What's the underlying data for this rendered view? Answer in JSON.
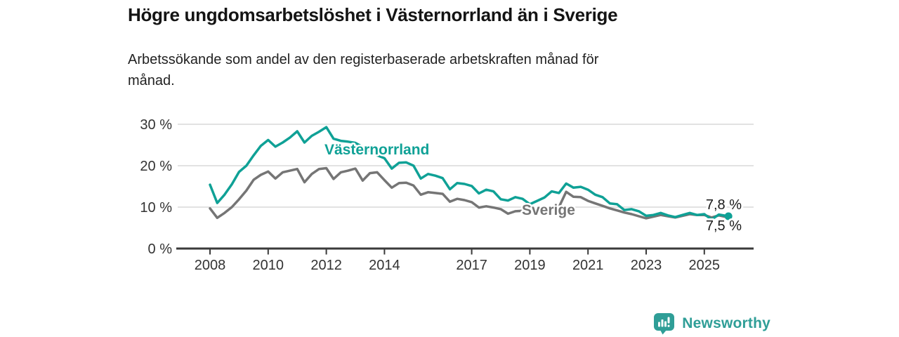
{
  "header": {
    "title": "Högre ungdomsarbetslöshet i Västernorrland än i Sverige",
    "subtitle_line1": "Arbetssökande som andel av den registerbaserade arbetskraften månad för",
    "subtitle_line2": "månad."
  },
  "footer": {
    "brand": "Newsworthy"
  },
  "colors": {
    "accent_teal": "#0fa196",
    "line_gray": "#757575",
    "grid": "#d9d9d9",
    "axis": "#3a3a3a",
    "tick_label": "#333333",
    "end_label": "#1a1a1a",
    "logo_teal": "#2f9e97",
    "background": "#ffffff"
  },
  "chart_data": {
    "type": "line",
    "title": "Högre ungdomsarbetslöshet i Västernorrland än i Sverige",
    "xlabel": "",
    "ylabel": "",
    "y_unit": "%",
    "ylim": [
      0,
      32
    ],
    "xlim": [
      2007.85,
      2026.3
    ],
    "grid": true,
    "legend_position": "inline-labels",
    "x_ticks": [
      {
        "value": 2008,
        "label": "2008"
      },
      {
        "value": 2010,
        "label": "2010"
      },
      {
        "value": 2012,
        "label": "2012"
      },
      {
        "value": 2014,
        "label": "2014"
      },
      {
        "value": 2017,
        "label": "2017"
      },
      {
        "value": 2019,
        "label": "2019"
      },
      {
        "value": 2021,
        "label": "2021"
      },
      {
        "value": 2023,
        "label": "2023"
      },
      {
        "value": 2025,
        "label": "2025"
      }
    ],
    "y_ticks": [
      {
        "value": 0,
        "label": "0 %"
      },
      {
        "value": 10,
        "label": "10 %"
      },
      {
        "value": 20,
        "label": "20 %"
      },
      {
        "value": 30,
        "label": "30 %"
      }
    ],
    "x": [
      2008.0,
      2008.25,
      2008.5,
      2008.75,
      2009.0,
      2009.25,
      2009.5,
      2009.75,
      2010.0,
      2010.25,
      2010.5,
      2010.75,
      2011.0,
      2011.25,
      2011.5,
      2011.75,
      2012.0,
      2012.25,
      2012.5,
      2012.75,
      2013.0,
      2013.25,
      2013.5,
      2013.75,
      2014.0,
      2014.25,
      2014.5,
      2014.75,
      2015.0,
      2015.25,
      2015.5,
      2015.75,
      2016.0,
      2016.25,
      2016.5,
      2016.75,
      2017.0,
      2017.25,
      2017.5,
      2017.75,
      2018.0,
      2018.25,
      2018.5,
      2018.75,
      2019.0,
      2019.25,
      2019.5,
      2019.75,
      2020.0,
      2020.25,
      2020.5,
      2020.75,
      2021.0,
      2021.25,
      2021.5,
      2021.75,
      2022.0,
      2022.25,
      2022.5,
      2022.75,
      2023.0,
      2023.25,
      2023.5,
      2023.75,
      2024.0,
      2024.25,
      2024.5,
      2024.75,
      2025.0,
      2025.25,
      2025.5,
      2025.83
    ],
    "series": [
      {
        "name": "Västernorrland",
        "color": "#0fa196",
        "end_label": "7,8 %",
        "end_dot": true,
        "values": [
          15.4,
          11.0,
          13.0,
          15.5,
          18.5,
          20.0,
          22.5,
          24.8,
          26.2,
          24.6,
          25.6,
          26.8,
          28.3,
          25.6,
          27.2,
          28.2,
          29.3,
          26.5,
          26.0,
          25.8,
          25.5,
          24.5,
          23.5,
          22.5,
          21.8,
          19.3,
          20.7,
          20.8,
          20.0,
          16.9,
          18.0,
          17.6,
          17.0,
          14.3,
          15.8,
          15.6,
          15.1,
          13.3,
          14.2,
          13.8,
          11.9,
          11.6,
          12.4,
          12.0,
          10.7,
          11.5,
          12.3,
          13.8,
          13.4,
          15.7,
          14.7,
          14.9,
          14.2,
          13.0,
          12.4,
          10.9,
          10.7,
          9.3,
          9.5,
          9.0,
          7.9,
          8.1,
          8.6,
          8.0,
          7.6,
          8.1,
          8.6,
          8.1,
          8.3,
          7.0,
          8.2,
          7.8
        ]
      },
      {
        "name": "Sverige",
        "color": "#757575",
        "end_label": "7,5 %",
        "end_dot": false,
        "values": [
          9.7,
          7.4,
          8.6,
          10.0,
          11.9,
          14.0,
          16.6,
          17.8,
          18.6,
          16.9,
          18.4,
          18.8,
          19.2,
          16.0,
          18.0,
          19.2,
          19.4,
          16.8,
          18.4,
          18.8,
          19.3,
          16.4,
          18.2,
          18.4,
          16.5,
          14.7,
          15.8,
          15.9,
          15.2,
          13.0,
          13.6,
          13.4,
          13.2,
          11.3,
          12.0,
          11.7,
          11.2,
          9.9,
          10.2,
          9.9,
          9.5,
          8.4,
          9.0,
          9.1,
          8.6,
          8.8,
          9.0,
          9.5,
          10.0,
          13.7,
          12.5,
          12.4,
          11.5,
          10.9,
          10.3,
          9.7,
          9.2,
          8.7,
          8.3,
          7.8,
          7.3,
          7.7,
          8.1,
          7.8,
          7.5,
          7.9,
          8.3,
          8.1,
          8.1,
          7.5,
          8.0,
          7.5
        ]
      }
    ]
  }
}
